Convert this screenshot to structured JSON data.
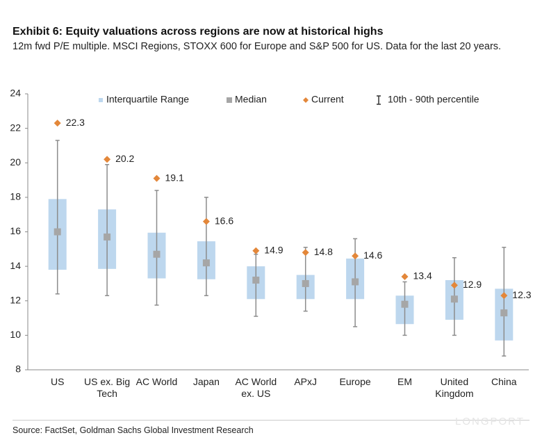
{
  "chart_data": {
    "type": "range-box",
    "title": "Exhibit 6: Equity valuations across regions are now at historical highs",
    "subtitle": "12m fwd P/E multiple. MSCI Regions, STOXX 600 for Europe and S&P 500 for US. Data for the last 20 years.",
    "source": "Source: FactSet, Goldman Sachs Global Investment Research",
    "watermark": "LONGPORT",
    "categories": [
      "US",
      "US ex. Big Tech",
      "AC World",
      "Japan",
      "AC World ex. US",
      "APxJ",
      "Europe",
      "EM",
      "United Kingdom",
      "China"
    ],
    "series": [
      {
        "name": "Interquartile Range",
        "color": "#bdd7ee",
        "low": [
          13.8,
          13.85,
          13.3,
          13.25,
          12.1,
          12.1,
          12.1,
          10.65,
          10.9,
          9.7
        ],
        "high": [
          17.9,
          17.3,
          15.95,
          15.45,
          14.0,
          13.5,
          14.45,
          12.3,
          13.2,
          12.7
        ]
      },
      {
        "name": "Median",
        "color": "#a6a6a6",
        "values": [
          16.0,
          15.7,
          14.7,
          14.2,
          13.2,
          13.0,
          13.1,
          11.8,
          12.1,
          11.3
        ]
      },
      {
        "name": "Current",
        "color": "#e3873a",
        "values": [
          22.3,
          20.2,
          19.1,
          16.6,
          14.9,
          14.8,
          14.6,
          13.4,
          12.9,
          12.3
        ]
      },
      {
        "name": "10th - 90th percentile",
        "color": "#8c8c8c",
        "low": [
          12.4,
          12.3,
          11.75,
          12.3,
          11.1,
          11.4,
          10.5,
          10.0,
          10.0,
          8.8
        ],
        "high": [
          21.3,
          19.9,
          18.4,
          18.0,
          14.7,
          15.1,
          15.6,
          13.1,
          14.5,
          15.1
        ]
      }
    ],
    "ylim": [
      8,
      24
    ],
    "yticks": [
      8,
      10,
      12,
      14,
      16,
      18,
      20,
      22,
      24
    ],
    "grid": false,
    "legend": "top"
  }
}
